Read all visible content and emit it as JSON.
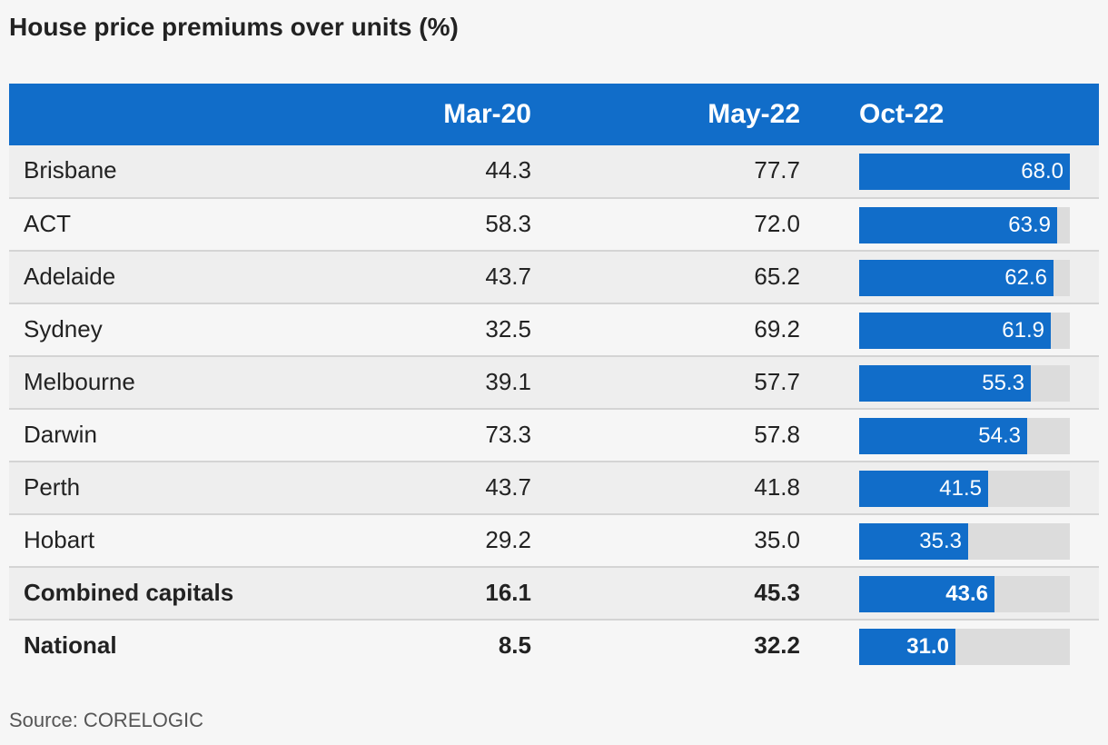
{
  "title": "House price premiums over units (%)",
  "source": "Source: CORELOGIC",
  "colors": {
    "header": "#116dc9",
    "bar": "#116dc9",
    "track": "#dcdcdc"
  },
  "chart_data": {
    "type": "table",
    "title": "House price premiums over units (%)",
    "columns": [
      "",
      "Mar-20",
      "May-22",
      "Oct-22"
    ],
    "bar_column": "Oct-22",
    "bar_max": 68.0,
    "rows": [
      {
        "name": "Brisbane",
        "mar20": "44.3",
        "may22": "77.7",
        "oct22": 68.0,
        "oct22_label": "68.0",
        "bold": false
      },
      {
        "name": "ACT",
        "mar20": "58.3",
        "may22": "72.0",
        "oct22": 63.9,
        "oct22_label": "63.9",
        "bold": false
      },
      {
        "name": "Adelaide",
        "mar20": "43.7",
        "may22": "65.2",
        "oct22": 62.6,
        "oct22_label": "62.6",
        "bold": false
      },
      {
        "name": "Sydney",
        "mar20": "32.5",
        "may22": "69.2",
        "oct22": 61.9,
        "oct22_label": "61.9",
        "bold": false
      },
      {
        "name": "Melbourne",
        "mar20": "39.1",
        "may22": "57.7",
        "oct22": 55.3,
        "oct22_label": "55.3",
        "bold": false
      },
      {
        "name": "Darwin",
        "mar20": "73.3",
        "may22": "57.8",
        "oct22": 54.3,
        "oct22_label": "54.3",
        "bold": false
      },
      {
        "name": "Perth",
        "mar20": "43.7",
        "may22": "41.8",
        "oct22": 41.5,
        "oct22_label": "41.5",
        "bold": false
      },
      {
        "name": "Hobart",
        "mar20": "29.2",
        "may22": "35.0",
        "oct22": 35.3,
        "oct22_label": "35.3",
        "bold": false
      },
      {
        "name": "Combined capitals",
        "mar20": "16.1",
        "may22": "45.3",
        "oct22": 43.6,
        "oct22_label": "43.6",
        "bold": true
      },
      {
        "name": "National",
        "mar20": "8.5",
        "may22": "32.2",
        "oct22": 31.0,
        "oct22_label": "31.0",
        "bold": true
      }
    ]
  }
}
